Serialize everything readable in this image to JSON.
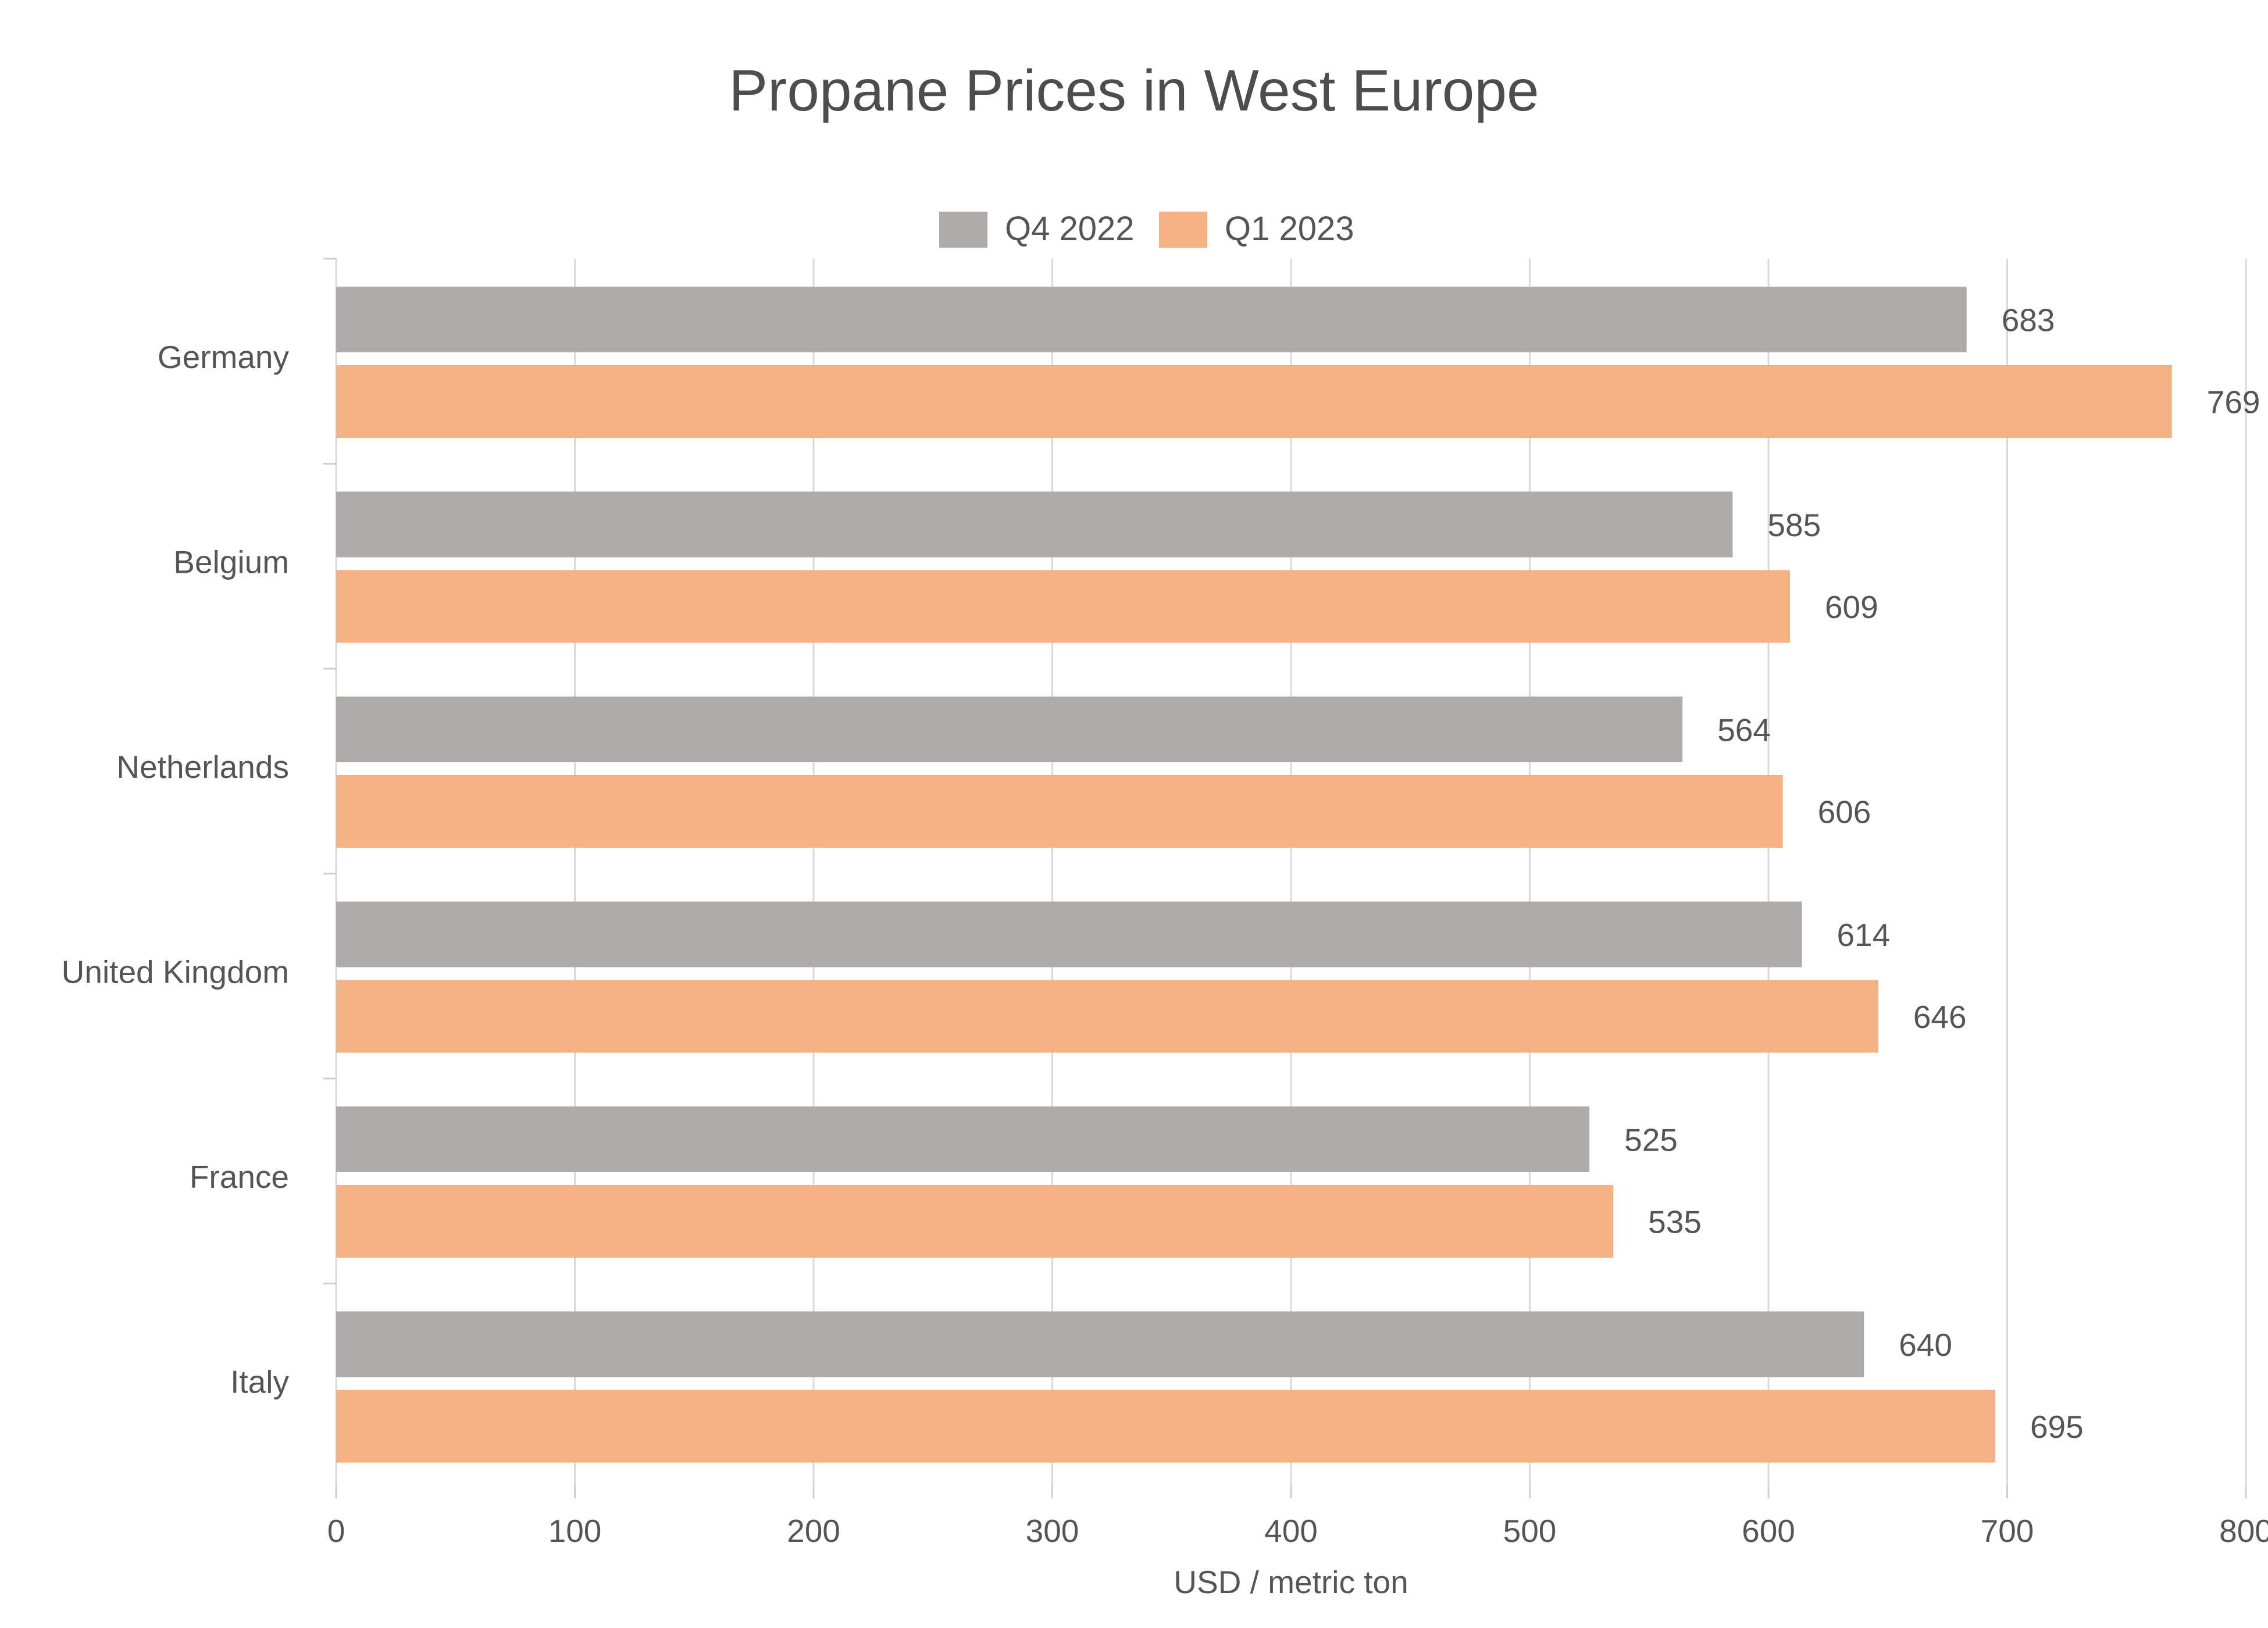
{
  "chart_data": {
    "type": "bar",
    "orientation": "horizontal",
    "title": "Propane Prices in West Europe",
    "xlabel": "USD / metric ton",
    "ylabel": "",
    "xlim": [
      0,
      800
    ],
    "x_ticks": [
      0,
      100,
      200,
      300,
      400,
      500,
      600,
      700,
      800
    ],
    "x_tick_labels": [
      "0",
      "100",
      "200",
      "300",
      "400",
      "500",
      "600",
      "700",
      "800"
    ],
    "grid": "vertical",
    "legend_position": "top-center",
    "categories": [
      "Germany",
      "Belgium",
      "Netherlands",
      "United Kingdom",
      "France",
      "Italy"
    ],
    "series": [
      {
        "name": "Q4 2022",
        "color": "#aeaaaa",
        "values": [
          683,
          585,
          564,
          614,
          525,
          640
        ],
        "labels": [
          "683",
          "585",
          "564",
          "614",
          "525",
          "640"
        ]
      },
      {
        "name": "Q1 2023",
        "color": "#f4b183",
        "values": [
          769,
          609,
          606,
          646,
          535,
          695
        ],
        "labels": [
          "769",
          "609",
          "606",
          "646",
          "535",
          "695"
        ]
      }
    ]
  }
}
